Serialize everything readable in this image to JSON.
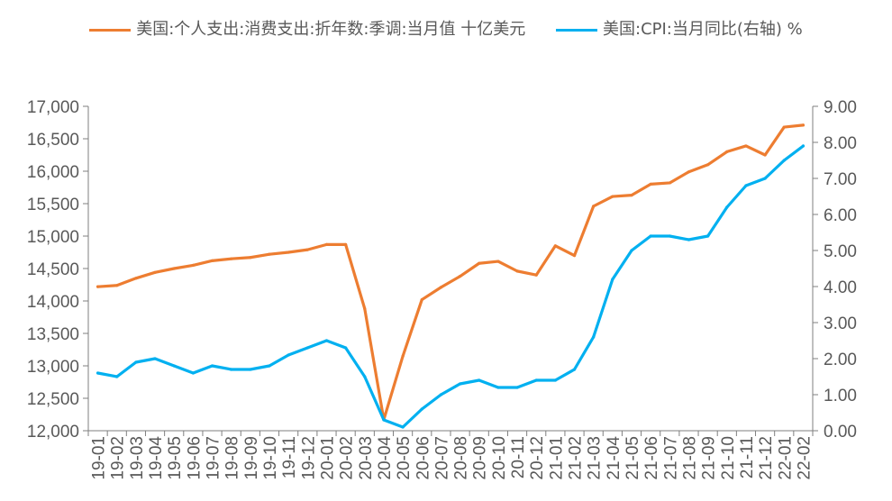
{
  "legend": {
    "series1_label": "美国:个人支出:消费支出:折年数:季调:当月值 十亿美元",
    "series2_label": "美国:CPI:当月同比(右轴) %"
  },
  "chart_data": {
    "type": "line",
    "x": [
      "19-01",
      "19-02",
      "19-03",
      "19-04",
      "19-05",
      "19-06",
      "19-07",
      "19-08",
      "19-09",
      "19-10",
      "19-11",
      "19-12",
      "20-01",
      "20-02",
      "20-03",
      "20-04",
      "20-05",
      "20-06",
      "20-07",
      "20-08",
      "20-09",
      "20-10",
      "20-11",
      "20-12",
      "21-01",
      "21-02",
      "21-03",
      "21-04",
      "21-05",
      "21-06",
      "21-07",
      "21-08",
      "21-09",
      "21-10",
      "21-11",
      "21-12",
      "22-01",
      "22-02"
    ],
    "series": [
      {
        "name": "美国:个人支出:消费支出:折年数:季调:当月值 十亿美元",
        "axis": "left",
        "color": "#ED7D31",
        "values": [
          14220,
          14240,
          14350,
          14440,
          14500,
          14550,
          14620,
          14650,
          14670,
          14720,
          14750,
          14790,
          14870,
          14870,
          13880,
          12170,
          13150,
          14020,
          14210,
          14380,
          14580,
          14610,
          14460,
          14400,
          14850,
          14700,
          15460,
          15610,
          15630,
          15800,
          15820,
          15990,
          16100,
          16300,
          16390,
          16250,
          16680,
          16710
        ]
      },
      {
        "name": "美国:CPI:当月同比(右轴) %",
        "axis": "right",
        "color": "#00B0F0",
        "values": [
          1.6,
          1.5,
          1.9,
          2.0,
          1.8,
          1.6,
          1.8,
          1.7,
          1.7,
          1.8,
          2.1,
          2.3,
          2.5,
          2.3,
          1.5,
          0.3,
          0.1,
          0.6,
          1.0,
          1.3,
          1.4,
          1.2,
          1.2,
          1.4,
          1.4,
          1.7,
          2.6,
          4.2,
          5.0,
          5.4,
          5.4,
          5.3,
          5.4,
          6.2,
          6.8,
          7.0,
          7.5,
          7.9
        ]
      }
    ],
    "y_left": {
      "lim": [
        12000,
        17000
      ],
      "ticks": [
        12000,
        12500,
        13000,
        13500,
        14000,
        14500,
        15000,
        15500,
        16000,
        16500,
        17000
      ],
      "tick_labels": [
        "12,000",
        "12,500",
        "13,000",
        "13,500",
        "14,000",
        "14,500",
        "15,000",
        "15,500",
        "16,000",
        "16,500",
        "17,000"
      ]
    },
    "y_right": {
      "lim": [
        0,
        9
      ],
      "ticks": [
        0,
        1,
        2,
        3,
        4,
        5,
        6,
        7,
        8,
        9
      ],
      "tick_labels": [
        "0.00",
        "1.00",
        "2.00",
        "3.00",
        "4.00",
        "5.00",
        "6.00",
        "7.00",
        "8.00",
        "9.00"
      ]
    },
    "grid": false,
    "legend_position": "top-center",
    "title": "",
    "xlabel": "",
    "ylabel": ""
  }
}
